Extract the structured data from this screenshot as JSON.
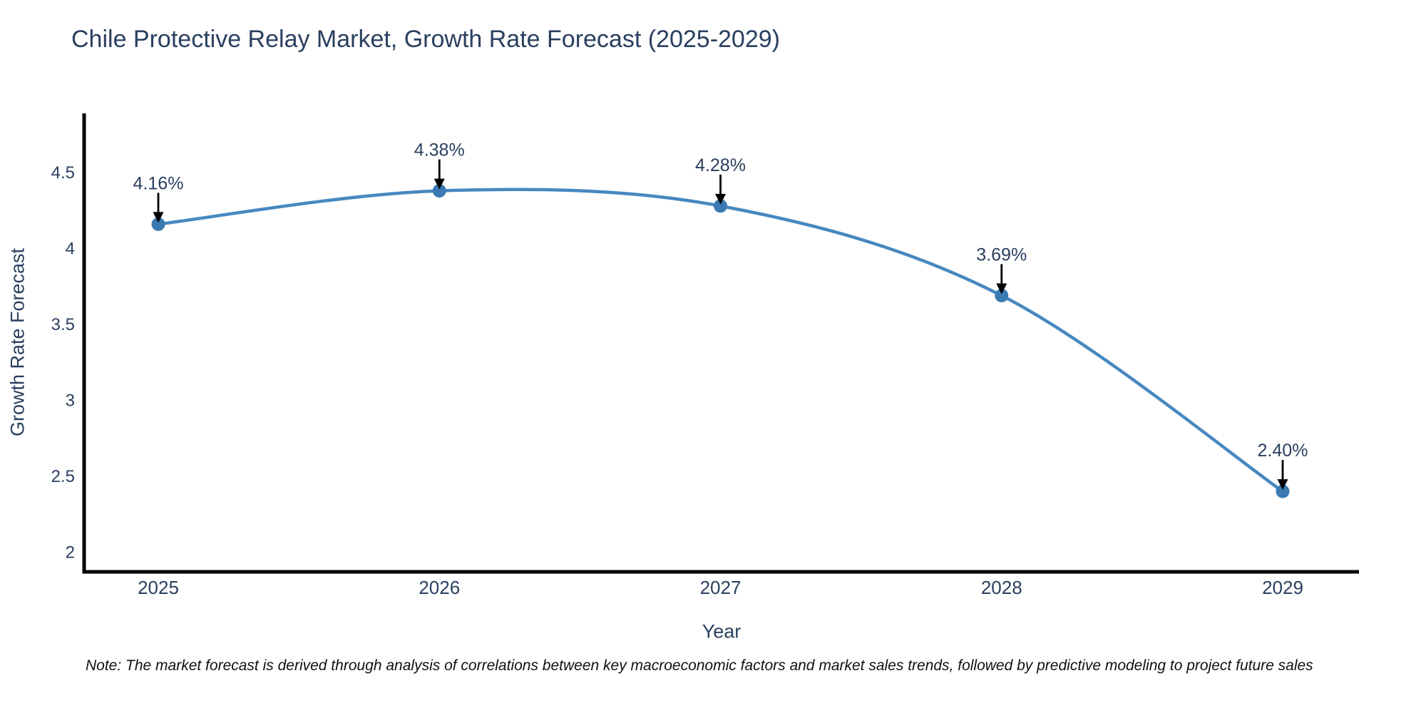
{
  "header": {
    "title": "Chile Protective Relay Market, Growth Rate Forecast (2025-2029)"
  },
  "chart_data": {
    "type": "line",
    "title": "Chile Protective Relay Market, Growth Rate Forecast (2025-2029)",
    "x": [
      "2025",
      "2026",
      "2027",
      "2028",
      "2029"
    ],
    "series": [
      {
        "name": "Growth Rate Forecast",
        "values": [
          4.16,
          4.38,
          4.28,
          3.69,
          2.4
        ]
      }
    ],
    "point_labels": [
      "4.16%",
      "4.38%",
      "4.28%",
      "3.69%",
      "2.40%"
    ],
    "xlabel": "Year",
    "ylabel": "Growth Rate Forecast",
    "yticks": [
      2,
      2.5,
      3,
      3.5,
      4,
      4.5
    ],
    "ylim": [
      1.87,
      4.89
    ],
    "grid": false,
    "line_shape": "spline",
    "legend": "none",
    "annotations": "value labels with downward arrows above each point",
    "colors": {
      "line": "#4788c0",
      "marker": "#3a79b2",
      "axis": "#000000",
      "text": "#2a3f5f",
      "arrow": "#000000",
      "background": "#ffffff"
    }
  },
  "footer": {
    "note": "Note: The market forecast is derived through analysis of correlations between key macroeconomic factors and market sales trends, followed by predictive modeling to project future sales"
  }
}
